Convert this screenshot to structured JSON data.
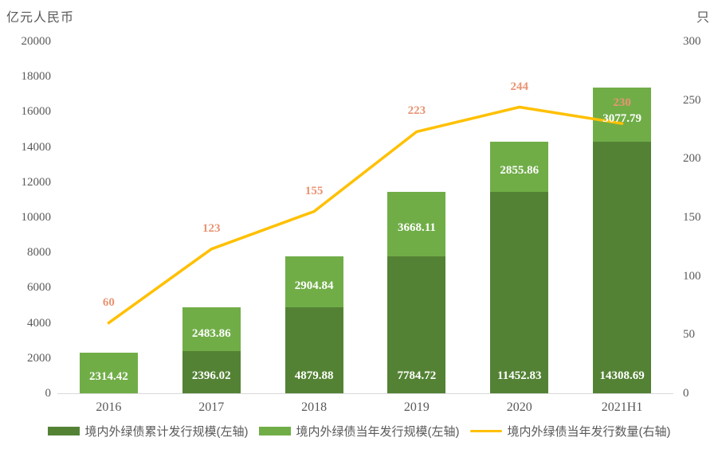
{
  "chart_data": {
    "type": "bar",
    "subtype": "stacked-bar-with-line",
    "categories": [
      "2016",
      "2017",
      "2018",
      "2019",
      "2020",
      "2021H1"
    ],
    "series": [
      {
        "name": "境内外绿债累计发行规模(左轴)",
        "type": "bar",
        "axis": "left",
        "color": "#548235",
        "values": [
          0,
          2396.02,
          4879.88,
          7784.72,
          11452.83,
          14308.69
        ],
        "labels": [
          "",
          "2396.02",
          "4879.88",
          "7784.72",
          "11452.83",
          "14308.69"
        ]
      },
      {
        "name": "境内外绿债当年发行规模(左轴)",
        "type": "bar",
        "axis": "left",
        "color": "#70AD47",
        "values": [
          2314.42,
          2483.86,
          2904.84,
          3668.11,
          2855.86,
          3077.79
        ],
        "labels": [
          "2314.42",
          "2483.86",
          "2904.84",
          "3668.11",
          "2855.86",
          "3077.79"
        ]
      },
      {
        "name": "境内外绿债当年发行数量(右轴)",
        "type": "line",
        "axis": "right",
        "color": "#FFC000",
        "values": [
          60,
          123,
          155,
          223,
          244,
          230
        ],
        "labels": [
          "60",
          "123",
          "155",
          "223",
          "244",
          "230"
        ]
      }
    ],
    "left_axis": {
      "title": "亿元人民币",
      "min": 0,
      "max": 20000,
      "step": 2000,
      "ticks": [
        "20000",
        "18000",
        "16000",
        "14000",
        "12000",
        "10000",
        "8000",
        "6000",
        "4000",
        "2000",
        "0"
      ]
    },
    "right_axis": {
      "title": "只",
      "min": 0,
      "max": 300,
      "step": 50,
      "ticks": [
        "300",
        "250",
        "200",
        "150",
        "100",
        "50",
        "0"
      ]
    },
    "grid": false,
    "legend_position": "bottom",
    "styles": {
      "bar_label_color": "#FFFFFF",
      "line_label_color": "#E99473",
      "axis_text_color": "#595959",
      "axis_line_color": "#D9D9D9",
      "background": "#FFFFFF"
    }
  },
  "legend": {
    "items": [
      {
        "label": "境内外绿债累计发行规模(左轴)",
        "color": "#548235",
        "shape": "rect"
      },
      {
        "label": "境内外绿债当年发行规模(左轴)",
        "color": "#70AD47",
        "shape": "rect"
      },
      {
        "label": "境内外绿债当年发行数量(右轴)",
        "color": "#FFC000",
        "shape": "line"
      }
    ]
  }
}
